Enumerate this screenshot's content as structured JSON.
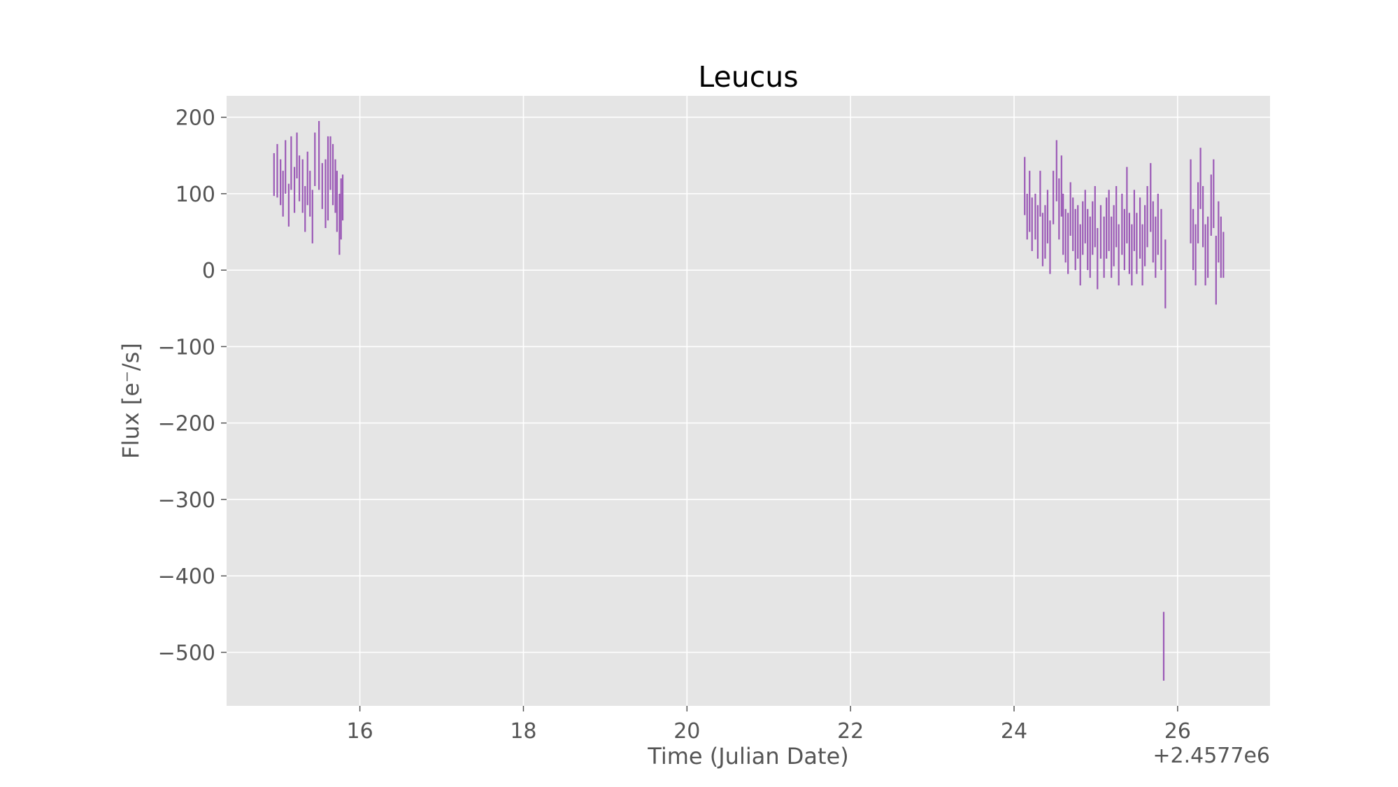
{
  "chart_data": {
    "type": "scatter",
    "title": "Leucus",
    "xlabel": "Time (Julian Date)",
    "ylabel": "Flux [e⁻/s]",
    "x_offset_label": "+2.4577e6",
    "xlim": [
      14.37,
      27.13
    ],
    "ylim": [
      -570,
      228
    ],
    "xticks": [
      16,
      18,
      20,
      22,
      24,
      26
    ],
    "yticks": [
      200,
      100,
      0,
      -100,
      -200,
      -300,
      -400,
      -500
    ],
    "xtick_labels": [
      "16",
      "18",
      "20",
      "22",
      "24",
      "26"
    ],
    "ytick_labels": [
      "200",
      "100",
      "0",
      "−100",
      "−200",
      "−300",
      "−400",
      "−500"
    ],
    "grid": true,
    "colors": {
      "series": "#9b59b6",
      "background": "#e5e5e5",
      "grid": "#ffffff"
    },
    "series": [
      {
        "error_bars": true,
        "points": [
          [
            14.95,
            125,
            28
          ],
          [
            14.99,
            130,
            35
          ],
          [
            15.03,
            115,
            30
          ],
          [
            15.06,
            100,
            30
          ],
          [
            15.09,
            135,
            35
          ],
          [
            15.13,
            85,
            28
          ],
          [
            15.16,
            140,
            35
          ],
          [
            15.2,
            105,
            30
          ],
          [
            15.23,
            150,
            30
          ],
          [
            15.26,
            120,
            30
          ],
          [
            15.3,
            110,
            35
          ],
          [
            15.33,
            80,
            30
          ],
          [
            15.36,
            120,
            35
          ],
          [
            15.39,
            100,
            30
          ],
          [
            15.42,
            70,
            35
          ],
          [
            15.45,
            145,
            35
          ],
          [
            15.5,
            150,
            45
          ],
          [
            15.54,
            110,
            30
          ],
          [
            15.58,
            100,
            45
          ],
          [
            15.61,
            120,
            55
          ],
          [
            15.64,
            140,
            35
          ],
          [
            15.67,
            125,
            40
          ],
          [
            15.7,
            110,
            35
          ],
          [
            15.72,
            90,
            40
          ],
          [
            15.75,
            60,
            40
          ],
          [
            15.77,
            80,
            40
          ],
          [
            15.79,
            95,
            30
          ],
          [
            24.13,
            110,
            38
          ],
          [
            24.16,
            70,
            30
          ],
          [
            24.19,
            90,
            40
          ],
          [
            24.22,
            60,
            35
          ],
          [
            24.26,
            70,
            30
          ],
          [
            24.29,
            50,
            35
          ],
          [
            24.32,
            100,
            30
          ],
          [
            24.35,
            40,
            35
          ],
          [
            24.38,
            50,
            35
          ],
          [
            24.41,
            70,
            35
          ],
          [
            24.44,
            30,
            35
          ],
          [
            24.48,
            95,
            35
          ],
          [
            24.52,
            130,
            40
          ],
          [
            24.55,
            80,
            40
          ],
          [
            24.58,
            110,
            40
          ],
          [
            24.6,
            60,
            40
          ],
          [
            24.63,
            45,
            35
          ],
          [
            24.66,
            35,
            40
          ],
          [
            24.69,
            80,
            35
          ],
          [
            24.72,
            60,
            35
          ],
          [
            24.75,
            40,
            40
          ],
          [
            24.78,
            50,
            35
          ],
          [
            24.81,
            20,
            40
          ],
          [
            24.84,
            55,
            35
          ],
          [
            24.87,
            70,
            35
          ],
          [
            24.9,
            40,
            40
          ],
          [
            24.93,
            30,
            40
          ],
          [
            24.96,
            55,
            35
          ],
          [
            24.99,
            70,
            40
          ],
          [
            25.02,
            15,
            40
          ],
          [
            25.06,
            50,
            35
          ],
          [
            25.1,
            30,
            40
          ],
          [
            25.13,
            55,
            40
          ],
          [
            25.16,
            65,
            40
          ],
          [
            25.19,
            30,
            40
          ],
          [
            25.22,
            45,
            40
          ],
          [
            25.25,
            70,
            40
          ],
          [
            25.28,
            20,
            40
          ],
          [
            25.32,
            60,
            40
          ],
          [
            25.35,
            40,
            40
          ],
          [
            25.38,
            85,
            50
          ],
          [
            25.41,
            35,
            40
          ],
          [
            25.44,
            20,
            40
          ],
          [
            25.47,
            65,
            40
          ],
          [
            25.5,
            35,
            40
          ],
          [
            25.54,
            55,
            40
          ],
          [
            25.57,
            20,
            40
          ],
          [
            25.6,
            45,
            40
          ],
          [
            25.63,
            70,
            40
          ],
          [
            25.67,
            95,
            45
          ],
          [
            25.7,
            50,
            40
          ],
          [
            25.73,
            30,
            40
          ],
          [
            25.76,
            60,
            40
          ],
          [
            25.8,
            40,
            40
          ],
          [
            25.83,
            -492,
            45
          ],
          [
            25.85,
            -5,
            45
          ],
          [
            26.16,
            90,
            55
          ],
          [
            26.19,
            40,
            40
          ],
          [
            26.22,
            20,
            40
          ],
          [
            26.25,
            75,
            40
          ],
          [
            26.28,
            120,
            40
          ],
          [
            26.31,
            70,
            40
          ],
          [
            26.34,
            20,
            40
          ],
          [
            26.37,
            30,
            40
          ],
          [
            26.41,
            85,
            40
          ],
          [
            26.44,
            100,
            45
          ],
          [
            26.47,
            0,
            45
          ],
          [
            26.5,
            50,
            40
          ],
          [
            26.53,
            30,
            40
          ],
          [
            26.56,
            20,
            30
          ]
        ]
      }
    ]
  }
}
